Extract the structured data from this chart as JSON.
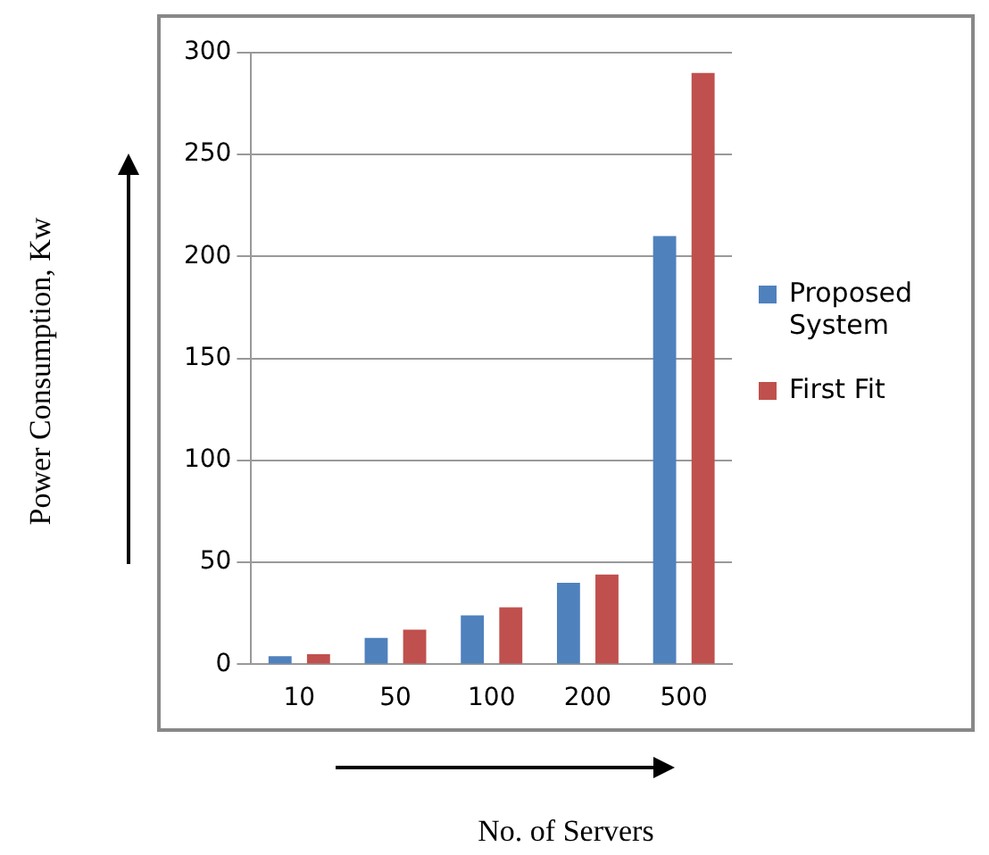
{
  "chart_data": {
    "type": "bar",
    "xlabel": "No. of Servers",
    "ylabel": "Power Consumption, Kw",
    "categories": [
      "10",
      "50",
      "100",
      "200",
      "500"
    ],
    "series": [
      {
        "name": "Proposed System",
        "color": "#4f81bd",
        "values": [
          4,
          13,
          24,
          40,
          210
        ]
      },
      {
        "name": "First Fit",
        "color": "#c0504d",
        "values": [
          5,
          17,
          28,
          44,
          290
        ]
      }
    ],
    "ylim": [
      0,
      300
    ],
    "yticks": [
      0,
      50,
      100,
      150,
      200,
      250,
      300
    ],
    "grid": "y",
    "legend": "right"
  }
}
